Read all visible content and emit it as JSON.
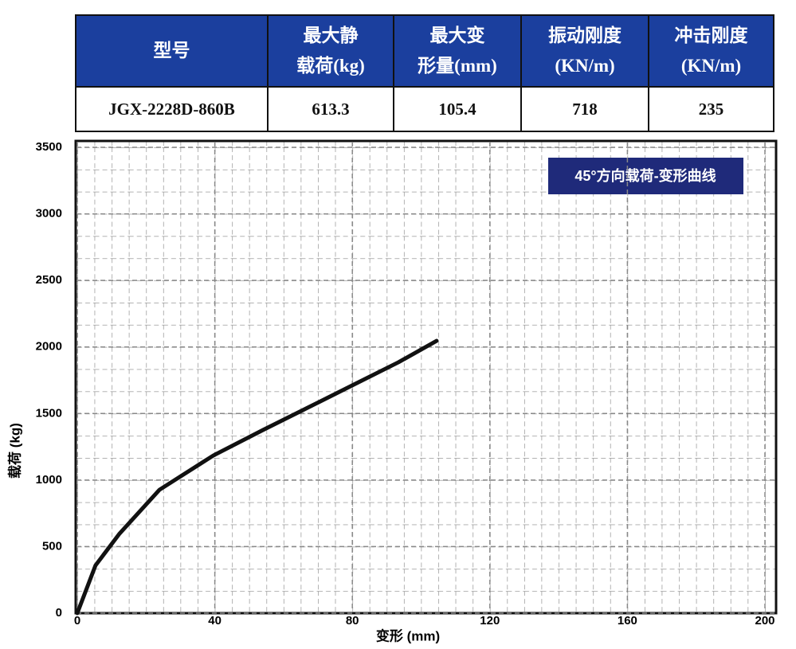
{
  "table": {
    "header": [
      [
        "型号"
      ],
      [
        "最大静",
        "载荷(kg)"
      ],
      [
        "最大变",
        "形量(mm)"
      ],
      [
        "振动刚度",
        "(KN/m)"
      ],
      [
        "冲击刚度",
        "(KN/m)"
      ]
    ],
    "rows": [
      [
        "JGX-2228D-860B",
        "613.3",
        "105.4",
        "718",
        "235"
      ]
    ]
  },
  "chart_data": {
    "type": "line",
    "title": "45°方向载荷-变形曲线",
    "x_label": "变形 (mm)",
    "y_label": "载荷 (kg)",
    "x": [
      0,
      5.3,
      12.3,
      23.9,
      39.6,
      54,
      70.2,
      81.8,
      93.4,
      104.5
    ],
    "series": [
      {
        "name": "45°方向载荷-变形曲线",
        "color": "#111111",
        "values": [
          0,
          359,
          598,
          927,
          1185,
          1376,
          1585,
          1735,
          1885,
          2046
        ]
      }
    ],
    "xlim": [
      0,
      200
    ],
    "xticks": [
      0,
      40,
      80,
      120,
      160,
      200
    ],
    "ylim": [
      0,
      3500
    ],
    "yticks": [
      0,
      500,
      1000,
      1500,
      2000,
      2500,
      3000,
      3500
    ],
    "grid": true
  }
}
